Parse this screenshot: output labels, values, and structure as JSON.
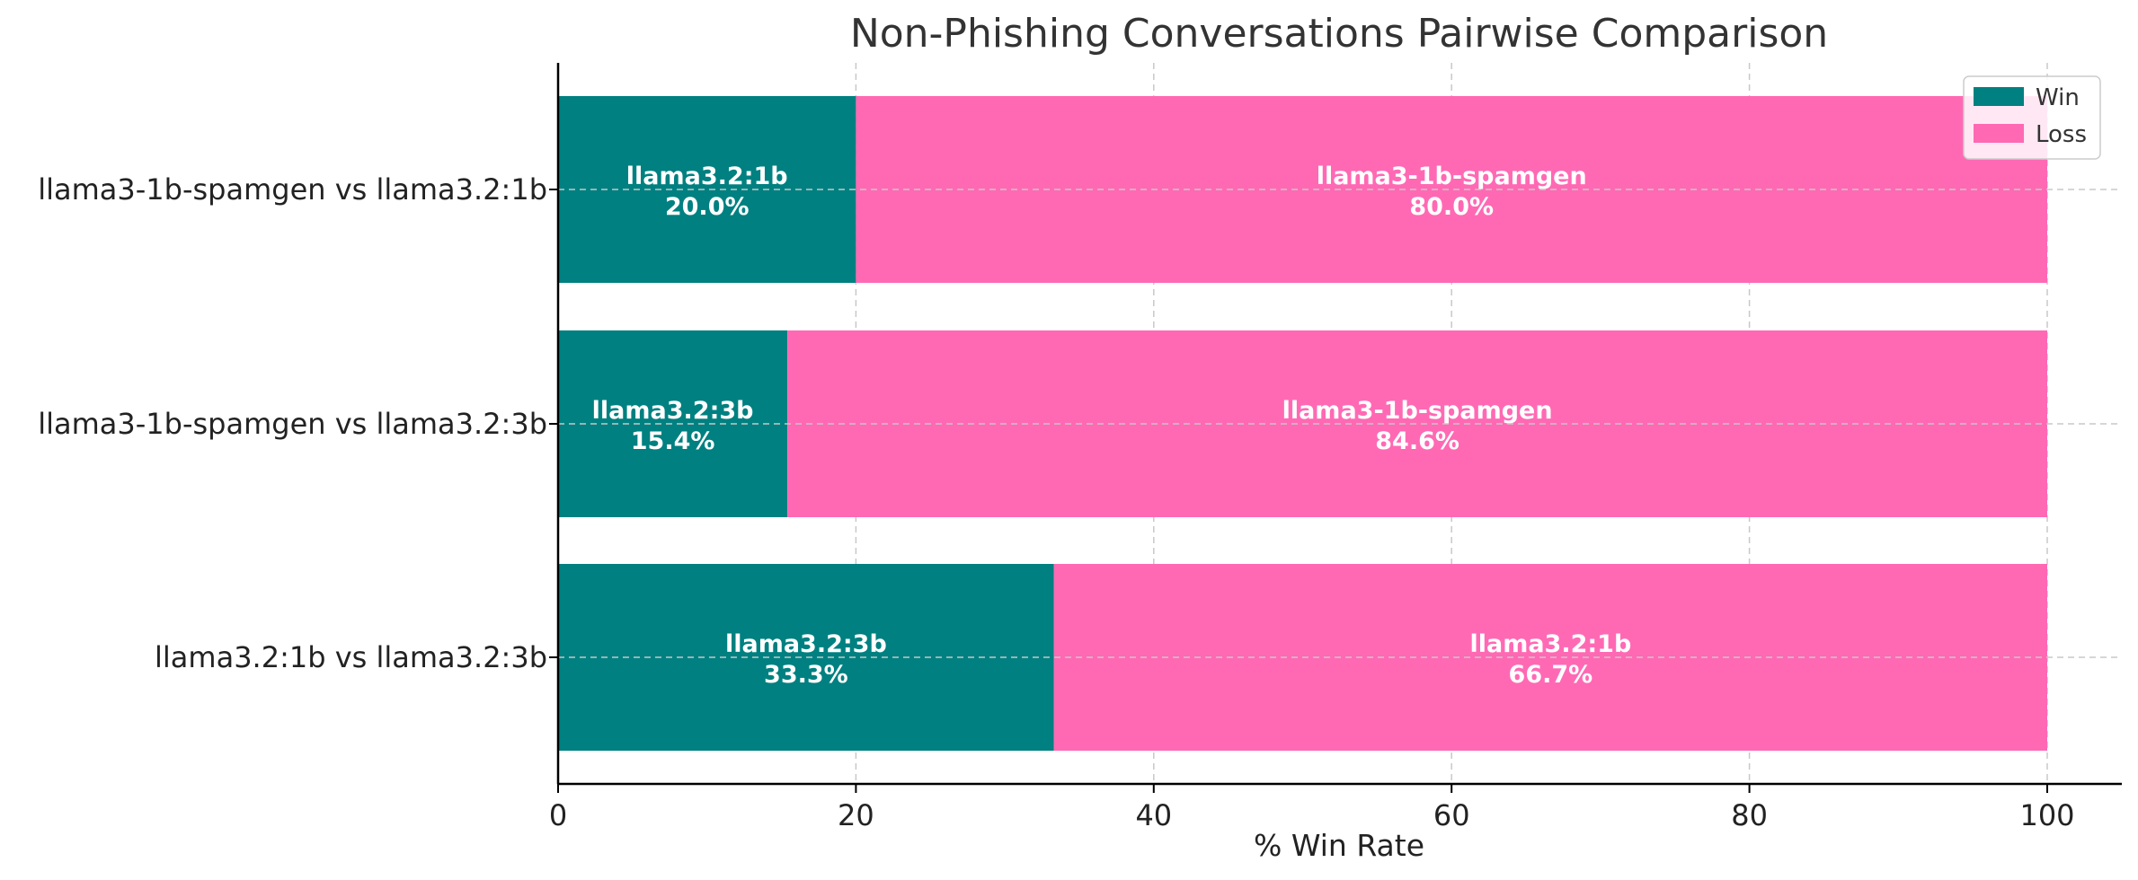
{
  "chart_data": {
    "type": "bar",
    "orientation": "horizontal",
    "stacked": true,
    "title": "Non-Phishing Conversations Pairwise Comparison",
    "xlabel": "% Win Rate",
    "ylabel": "",
    "xlim": [
      0,
      100
    ],
    "xticks": [
      "0",
      "20",
      "40",
      "60",
      "80",
      "100"
    ],
    "grid": true,
    "legend_position": "top-right",
    "categories": [
      "llama3-1b-spamgen vs llama3.2:1b",
      "llama3-1b-spamgen vs llama3.2:3b",
      "llama3.2:1b vs llama3.2:3b"
    ],
    "series": [
      {
        "name": "Win",
        "color": "#008080",
        "values": [
          20.0,
          15.4,
          33.3
        ],
        "labels": [
          "llama3.2:1b",
          "llama3.2:3b",
          "llama3.2:3b"
        ],
        "value_labels": [
          "20.0%",
          "15.4%",
          "33.3%"
        ]
      },
      {
        "name": "Loss",
        "color": "#FF69B4",
        "values": [
          80.0,
          84.6,
          66.7
        ],
        "labels": [
          "llama3-1b-spamgen",
          "llama3-1b-spamgen",
          "llama3.2:1b"
        ],
        "value_labels": [
          "80.0%",
          "84.6%",
          "66.7%"
        ]
      }
    ]
  }
}
